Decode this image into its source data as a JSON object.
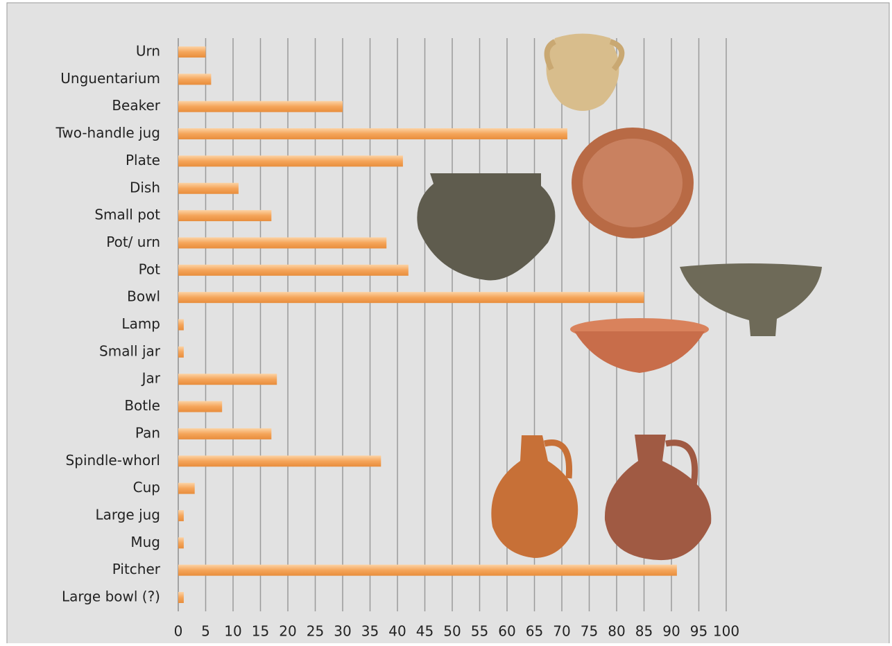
{
  "chart_data": {
    "type": "hbar",
    "categories": [
      "Urn",
      "Unguentarium",
      "Beaker",
      "Two-handle jug",
      "Plate",
      "Dish",
      "Small pot",
      "Pot/ urn",
      "Pot",
      "Bowl",
      "Lamp",
      "Small jar",
      "Jar",
      "Botle",
      "Pan",
      "Spindle-whorl",
      "Cup",
      "Large jug",
      "Mug",
      "Pitcher",
      "Large bowl (?)"
    ],
    "values": [
      5,
      6,
      30,
      71,
      41,
      11,
      17,
      38,
      42,
      85,
      1,
      1,
      18,
      8,
      17,
      37,
      3,
      1,
      1,
      91,
      1
    ],
    "color": "#f5a55a",
    "xlim": [
      0,
      100
    ],
    "xticks": [
      0,
      5,
      10,
      15,
      20,
      25,
      30,
      35,
      40,
      45,
      50,
      55,
      60,
      65,
      70,
      75,
      80,
      85,
      90,
      95,
      100
    ],
    "grid": true
  }
}
